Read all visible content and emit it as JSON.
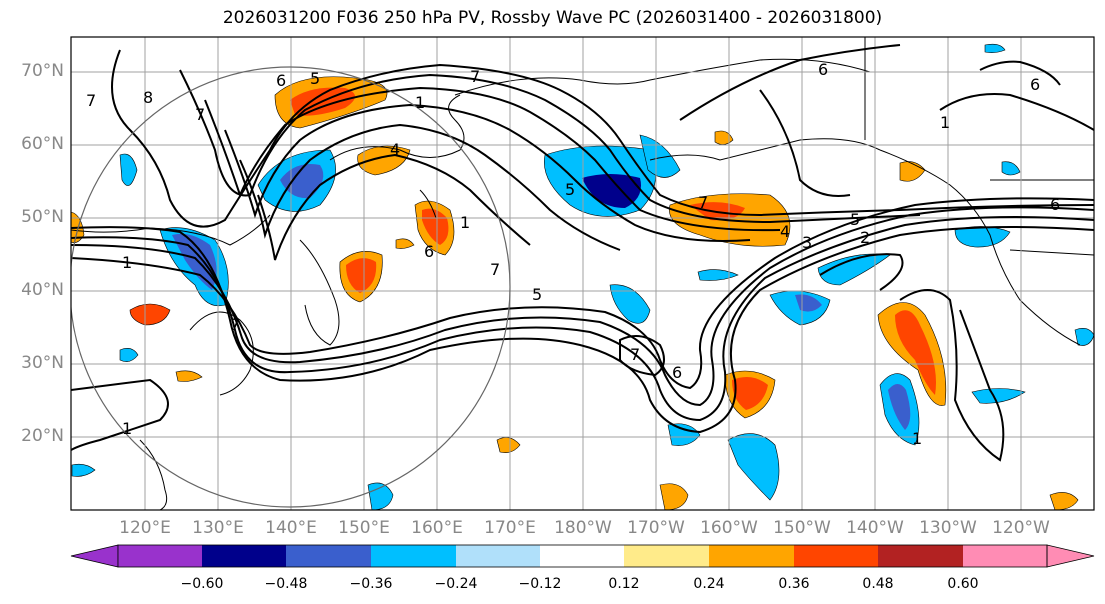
{
  "title": "2026031200 F036 250 hPa PV, Rossby Wave PC (2026031400 - 2026031800)",
  "lat_labels": [
    "70°N",
    "60°N",
    "50°N",
    "40°N",
    "30°N",
    "20°N"
  ],
  "lon_labels": [
    "120°E",
    "130°E",
    "140°E",
    "150°E",
    "160°E",
    "170°E",
    "180°W",
    "170°W",
    "160°W",
    "150°W",
    "140°W",
    "130°W",
    "120°W"
  ],
  "colorbar": {
    "ticks": [
      "−0.60",
      "−0.48",
      "−0.36",
      "−0.24",
      "−0.12",
      "0.12",
      "0.24",
      "0.36",
      "0.48",
      "0.60"
    ],
    "colors": [
      "#9932cc",
      "#00008b",
      "#3a5fcd",
      "#00bfff",
      "#b0e0fa",
      "#ffffff",
      "#ffeb8a",
      "#ffa500",
      "#ff4500",
      "#b22222",
      "#ff8cb4"
    ]
  },
  "contour_labels": [
    "6",
    "5",
    "7",
    "8",
    "7",
    "1",
    "4",
    "7",
    "1",
    "6",
    "6",
    "5",
    "7",
    "6",
    "5",
    "4",
    "3",
    "2",
    "6",
    "7",
    "1",
    "1",
    "1",
    "5",
    "7",
    "7",
    "6",
    "1"
  ],
  "colors": {
    "label_gray": "#888888",
    "grid": "#a0a0a0"
  }
}
